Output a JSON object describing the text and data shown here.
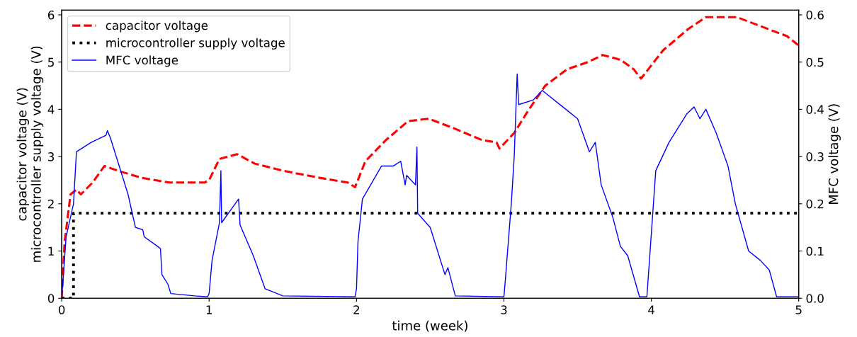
{
  "chart_data": {
    "type": "line",
    "xlabel": "time (week)",
    "ylabel": "capacitor voltage (V)\nmicrocontroller supply voltage (V)",
    "y2label": "MFC voltage (V)",
    "xlim": [
      0,
      5
    ],
    "xticks": [
      0,
      1,
      2,
      3,
      4,
      5
    ],
    "ylim": [
      0,
      6.1
    ],
    "yticks": [
      0,
      1,
      2,
      3,
      4,
      5,
      6
    ],
    "y2lim": [
      0,
      0.61
    ],
    "y2ticks": [
      {
        "value": 0,
        "label": "0.0"
      },
      0.1,
      0.2,
      0.3,
      0.4,
      0.5,
      0.6
    ],
    "legend": "top left",
    "grid": false,
    "marker": "none",
    "series": [
      {
        "name": "capacitor voltage",
        "color": "#ff0000",
        "line_style": "dashed",
        "x": [
          0,
          0.02,
          0.06,
          0.1,
          0.13,
          0.21,
          0.29,
          0.38,
          0.54,
          0.73,
          0.97,
          1.0,
          1.07,
          1.19,
          1.31,
          1.5,
          1.75,
          1.94,
          1.99,
          2.06,
          2.2,
          2.35,
          2.49,
          2.66,
          2.85,
          2.95,
          2.97,
          3.07,
          3.16,
          3.28,
          3.43,
          3.57,
          3.67,
          3.79,
          3.88,
          3.93,
          4.08,
          4.25,
          4.37,
          4.58,
          4.75,
          4.92,
          5.0
        ],
        "values": [
          0,
          1.2,
          2.2,
          2.3,
          2.2,
          2.45,
          2.8,
          2.7,
          2.55,
          2.45,
          2.45,
          2.5,
          2.95,
          3.05,
          2.85,
          2.7,
          2.55,
          2.45,
          2.35,
          2.9,
          3.35,
          3.75,
          3.8,
          3.6,
          3.35,
          3.3,
          3.17,
          3.5,
          3.95,
          4.5,
          4.85,
          5.0,
          5.15,
          5.05,
          4.85,
          4.65,
          5.25,
          5.7,
          5.95,
          5.95,
          5.75,
          5.55,
          5.35
        ]
      },
      {
        "name": "microcontroller supply voltage",
        "color": "#000000",
        "line_style": "dotted",
        "x": [
          0,
          0.08,
          0.08,
          5
        ],
        "values": [
          0,
          0,
          1.8,
          1.8
        ]
      },
      {
        "name": "MFC voltage",
        "color": "#0000ff",
        "line_style": "solid",
        "axis": "y2",
        "x": [
          0,
          0.03,
          0.08,
          0.1,
          0.2,
          0.3,
          0.31,
          0.33,
          0.45,
          0.5,
          0.55,
          0.56,
          0.65,
          0.67,
          0.68,
          0.72,
          0.74,
          0.9,
          0.99,
          1.0,
          1.02,
          1.07,
          1.08,
          1.085,
          1.2,
          1.21,
          1.3,
          1.38,
          1.5,
          1.99,
          2.0,
          2.01,
          2.04,
          2.17,
          2.25,
          2.3,
          2.33,
          2.34,
          2.4,
          2.41,
          2.415,
          2.5,
          2.6,
          2.62,
          2.67,
          3.0,
          3.01,
          3.05,
          3.07,
          3.09,
          3.1,
          3.2,
          3.26,
          3.42,
          3.5,
          3.58,
          3.62,
          3.66,
          3.74,
          3.79,
          3.84,
          3.92,
          3.97,
          4.03,
          4.12,
          4.24,
          4.29,
          4.33,
          4.37,
          4.44,
          4.52,
          4.57,
          4.66,
          4.74,
          4.8,
          4.85,
          5.0
        ],
        "values": [
          0,
          0.13,
          0.2,
          0.31,
          0.33,
          0.345,
          0.355,
          0.34,
          0.22,
          0.15,
          0.145,
          0.13,
          0.11,
          0.105,
          0.05,
          0.03,
          0.01,
          0.005,
          0.003,
          0.01,
          0.08,
          0.16,
          0.27,
          0.16,
          0.21,
          0.155,
          0.09,
          0.02,
          0.005,
          0.003,
          0.02,
          0.12,
          0.21,
          0.28,
          0.28,
          0.29,
          0.24,
          0.26,
          0.24,
          0.32,
          0.18,
          0.15,
          0.05,
          0.065,
          0.005,
          0.003,
          0.04,
          0.2,
          0.3,
          0.475,
          0.41,
          0.42,
          0.44,
          0.4,
          0.38,
          0.31,
          0.33,
          0.24,
          0.17,
          0.11,
          0.09,
          0.003,
          0.003,
          0.27,
          0.33,
          0.39,
          0.405,
          0.38,
          0.4,
          0.35,
          0.28,
          0.2,
          0.1,
          0.08,
          0.06,
          0.003,
          0.003
        ]
      }
    ]
  }
}
